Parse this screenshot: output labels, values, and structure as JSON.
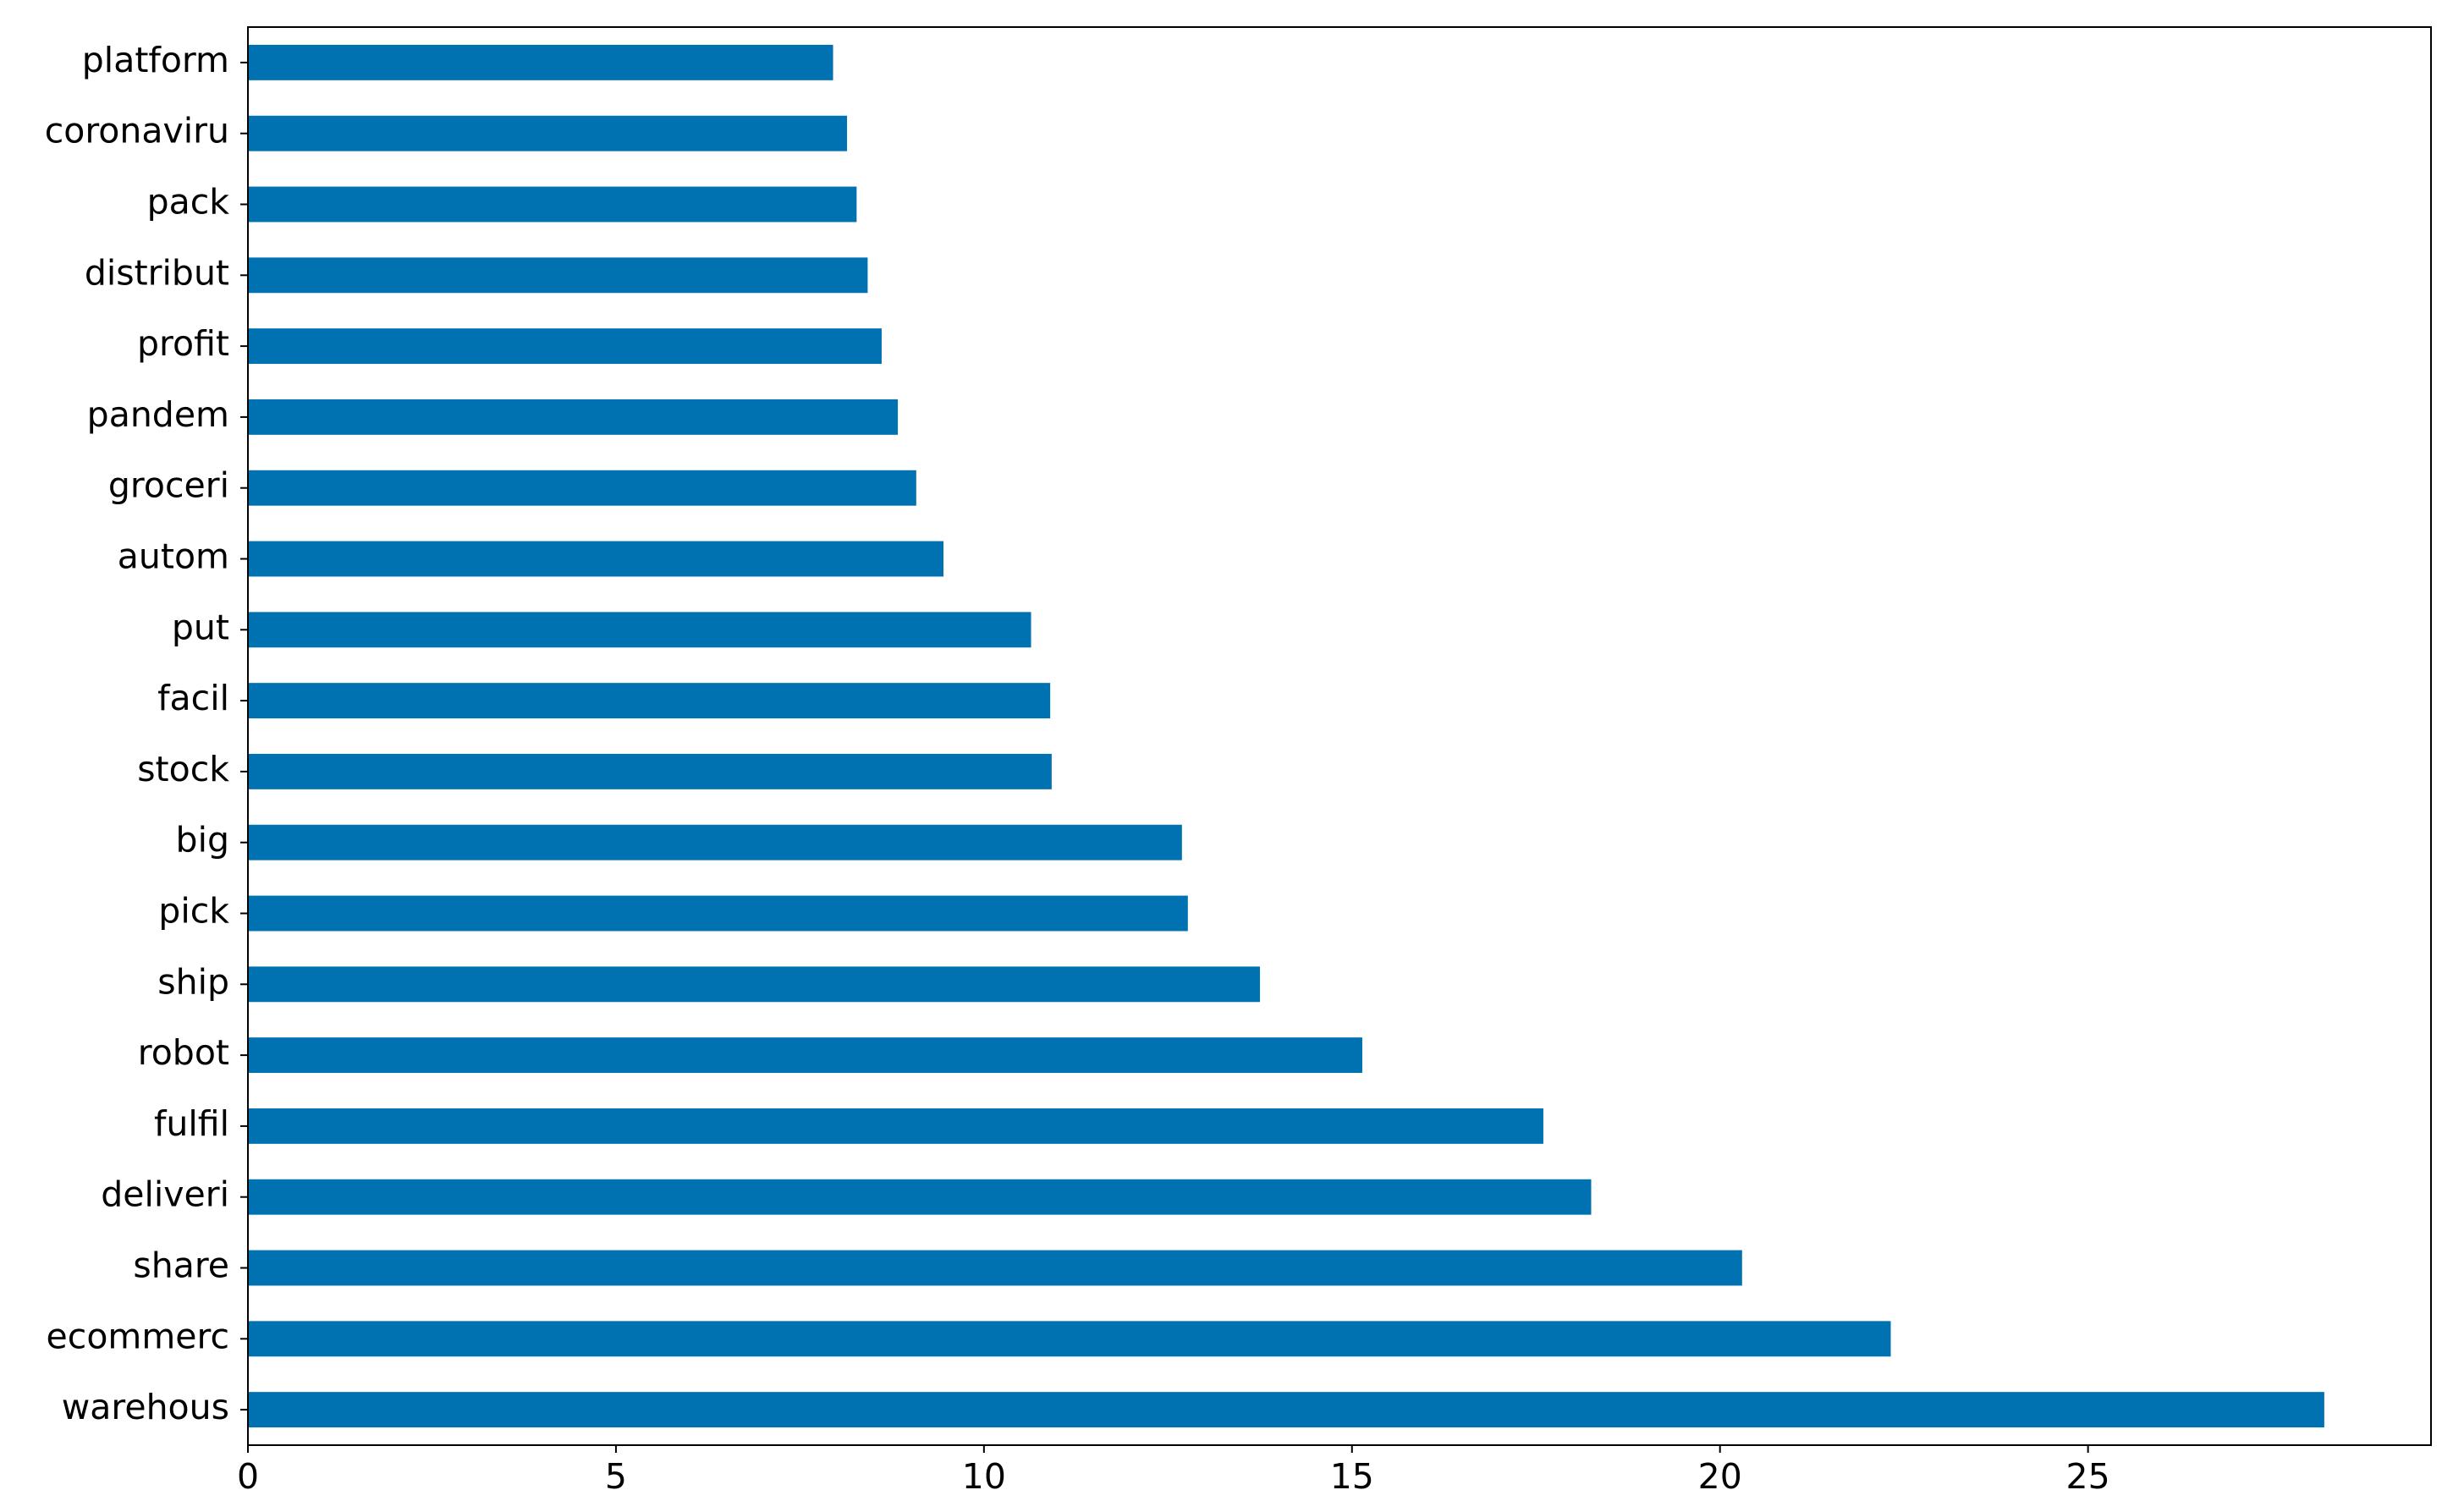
{
  "chart_data": {
    "type": "barh",
    "color": "#0072b2",
    "categories": [
      "platform",
      "coronaviru",
      "pack",
      "distribut",
      "profit",
      "pandem",
      "groceri",
      "autom",
      "put",
      "facil",
      "stock",
      "big",
      "pick",
      "ship",
      "robot",
      "fulfil",
      "deliveri",
      "share",
      "ecommerc",
      "warehous"
    ],
    "values": [
      7.95,
      8.14,
      8.27,
      8.42,
      8.61,
      8.83,
      9.08,
      9.45,
      10.64,
      10.9,
      10.92,
      12.69,
      12.77,
      13.75,
      15.14,
      17.6,
      18.25,
      20.3,
      22.32,
      28.21
    ],
    "xlim": [
      0,
      29.66
    ],
    "xticks": [
      0,
      5,
      10,
      15,
      20,
      25
    ]
  }
}
